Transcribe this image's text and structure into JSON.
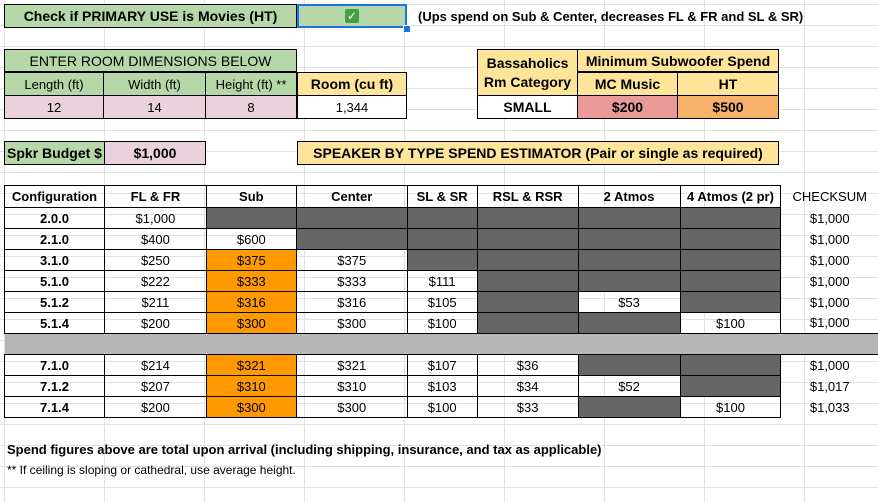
{
  "primary_use": {
    "label": "Check if PRIMARY USE is Movies (HT)",
    "checked": true,
    "note": "(Ups spend on Sub & Center, decreases FL & FR and SL & SR)"
  },
  "room": {
    "header": "ENTER ROOM DIMENSIONS BELOW",
    "length_label": "Length (ft)",
    "width_label": "Width (ft)",
    "height_label": "Height (ft) **",
    "volume_label": "Room (cu ft)",
    "length": "12",
    "width": "14",
    "height": "8",
    "volume": "1,344"
  },
  "category": {
    "label_line1": "Bassaholics",
    "label_line2": "Rm Category",
    "value": "SMALL"
  },
  "min_sub": {
    "header": "Minimum Subwoofer Spend",
    "music_label": "MC Music",
    "ht_label": "HT",
    "music_value": "$200",
    "ht_value": "$500"
  },
  "budget": {
    "label": "Spkr Budget $",
    "value": "$1,000"
  },
  "estimator": {
    "title": "SPEAKER BY TYPE SPEND ESTIMATOR (Pair or single as required)"
  },
  "table": {
    "headers": [
      "Configuration",
      "FL & FR",
      "Sub",
      "Center",
      "SL & SR",
      "RSL & RSR",
      "2 Atmos",
      "4 Atmos (2 pr)"
    ],
    "checksum_label": "CHECKSUM",
    "rows": [
      {
        "config": "2.0.0",
        "cells": [
          "$1,000",
          "",
          "",
          "",
          "",
          "",
          ""
        ],
        "checksum": "$1,000"
      },
      {
        "config": "2.1.0",
        "cells": [
          "$400",
          "$600",
          "",
          "",
          "",
          "",
          ""
        ],
        "checksum": "$1,000"
      },
      {
        "config": "3.1.0",
        "cells": [
          "$250",
          "$375",
          "$375",
          "",
          "",
          "",
          ""
        ],
        "checksum": "$1,000"
      },
      {
        "config": "5.1.0",
        "cells": [
          "$222",
          "$333",
          "$333",
          "$111",
          "",
          "",
          ""
        ],
        "checksum": "$1,000"
      },
      {
        "config": "5.1.2",
        "cells": [
          "$211",
          "$316",
          "$316",
          "$105",
          "",
          "$53",
          ""
        ],
        "checksum": "$1,000"
      },
      {
        "config": "5.1.4",
        "cells": [
          "$200",
          "$300",
          "$300",
          "$100",
          "",
          "",
          "$100"
        ],
        "checksum": "$1,000"
      },
      {
        "config": "7.1.0",
        "cells": [
          "$214",
          "$321",
          "$321",
          "$107",
          "$36",
          "",
          ""
        ],
        "checksum": "$1,000"
      },
      {
        "config": "7.1.2",
        "cells": [
          "$207",
          "$310",
          "$310",
          "$103",
          "$34",
          "$52",
          ""
        ],
        "checksum": "$1,017"
      },
      {
        "config": "7.1.4",
        "cells": [
          "$200",
          "$300",
          "$300",
          "$100",
          "$33",
          "",
          "$100"
        ],
        "checksum": "$1,033"
      }
    ]
  },
  "notes": {
    "spend": "Spend figures above are total upon arrival (including shipping, insurance, and tax as applicable)",
    "ceiling": "** If ceiling is sloping or cathedral, use average height."
  },
  "colors": {
    "green": "#b6d7a8",
    "pink": "#ead1dc",
    "yellow": "#ffe599",
    "salmon": "#ea9999",
    "orange": "#f6b26b",
    "dark_grey": "#666666",
    "sub_orange": "#ff9900",
    "separator": "#b7b7b7",
    "selection": "#1a73e8"
  }
}
